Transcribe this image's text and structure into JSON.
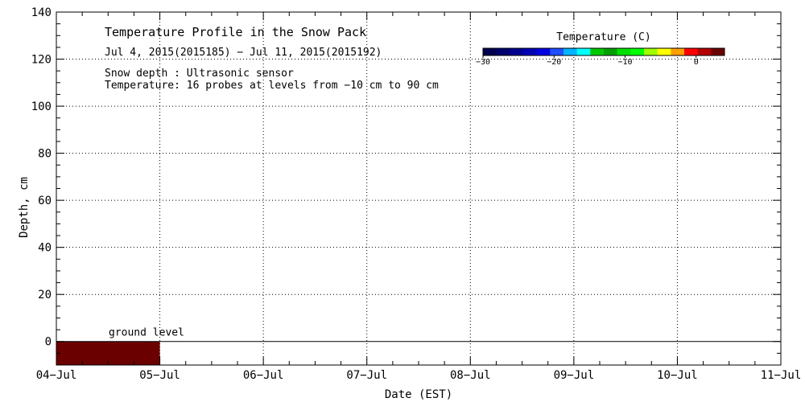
{
  "chart_data": {
    "type": "heatmap",
    "title": "Temperature Profile in the Snow Pack",
    "subtitle": "Jul  4, 2015(2015185) − Jul 11, 2015(2015192)",
    "notes": [
      "Snow depth : Ultrasonic sensor",
      "Temperature: 16 probes at levels from −10 cm to 90 cm"
    ],
    "xlabel": "Date (EST)",
    "ylabel": "Depth, cm",
    "x_ticks": [
      "04−Jul",
      "05−Jul",
      "06−Jul",
      "07−Jul",
      "08−Jul",
      "09−Jul",
      "10−Jul",
      "11−Jul"
    ],
    "xlim": [
      "2015-07-04",
      "2015-07-11"
    ],
    "ylim": [
      -10,
      140
    ],
    "y_ticks": [
      0,
      20,
      40,
      60,
      80,
      100,
      120,
      140
    ],
    "grid": true,
    "ground_level": {
      "label": "ground level",
      "depth": 0
    },
    "cells": [
      {
        "x_start": "2015-07-04",
        "x_end": "2015-07-05",
        "y_bottom": -10,
        "y_top": 0,
        "temperature": 3,
        "color": "#6b0000"
      }
    ],
    "colorbar": {
      "title": "Temperature (C)",
      "ticks": [
        -30,
        -20,
        -10,
        0
      ],
      "tick_labels": [
        "−30",
        "−20",
        "−10",
        "0"
      ],
      "range": [
        -30,
        4
      ],
      "colors": [
        "#000050",
        "#00006e",
        "#000090",
        "#0000b4",
        "#0000e0",
        "#1e50ff",
        "#00b4ff",
        "#00ffff",
        "#00c800",
        "#00a000",
        "#00e000",
        "#00ff00",
        "#a0ff00",
        "#ffff00",
        "#ffa000",
        "#ff0000",
        "#b40000",
        "#6b0000"
      ]
    }
  }
}
